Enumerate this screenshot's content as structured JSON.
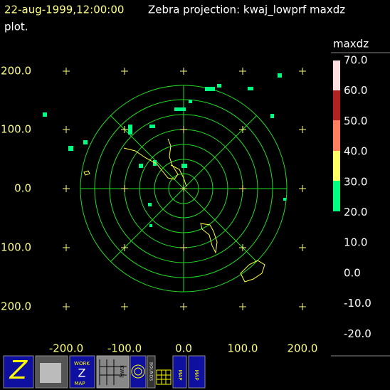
{
  "header": {
    "timestamp": "22-aug-1999,12:00:00",
    "title": "Zebra projection: kwaj_lowprf maxdz",
    "title_cont": "plot."
  },
  "plot": {
    "x_labels": [
      "-200.0",
      "-100.0",
      "0.0",
      "100.0",
      "200.0"
    ],
    "y_labels": [
      "200.0",
      "100.0",
      "0.0",
      "100.0",
      "200.0"
    ]
  },
  "color_bar": {
    "field": "maxdz",
    "labels": [
      "70.0",
      "60.0",
      "50.0",
      "40.0",
      "30.0",
      "20.0",
      "10.0",
      "0.0",
      "-10.0",
      "-20.0"
    ]
  },
  "toolbar": {
    "z_icon": "Z",
    "work": "WORK",
    "work_z": "Z",
    "work_map": "MAP",
    "kwaj": "KWAJ",
    "bounds": "BOUNDS",
    "map_1": "MAP",
    "map_2": "MAP"
  }
}
